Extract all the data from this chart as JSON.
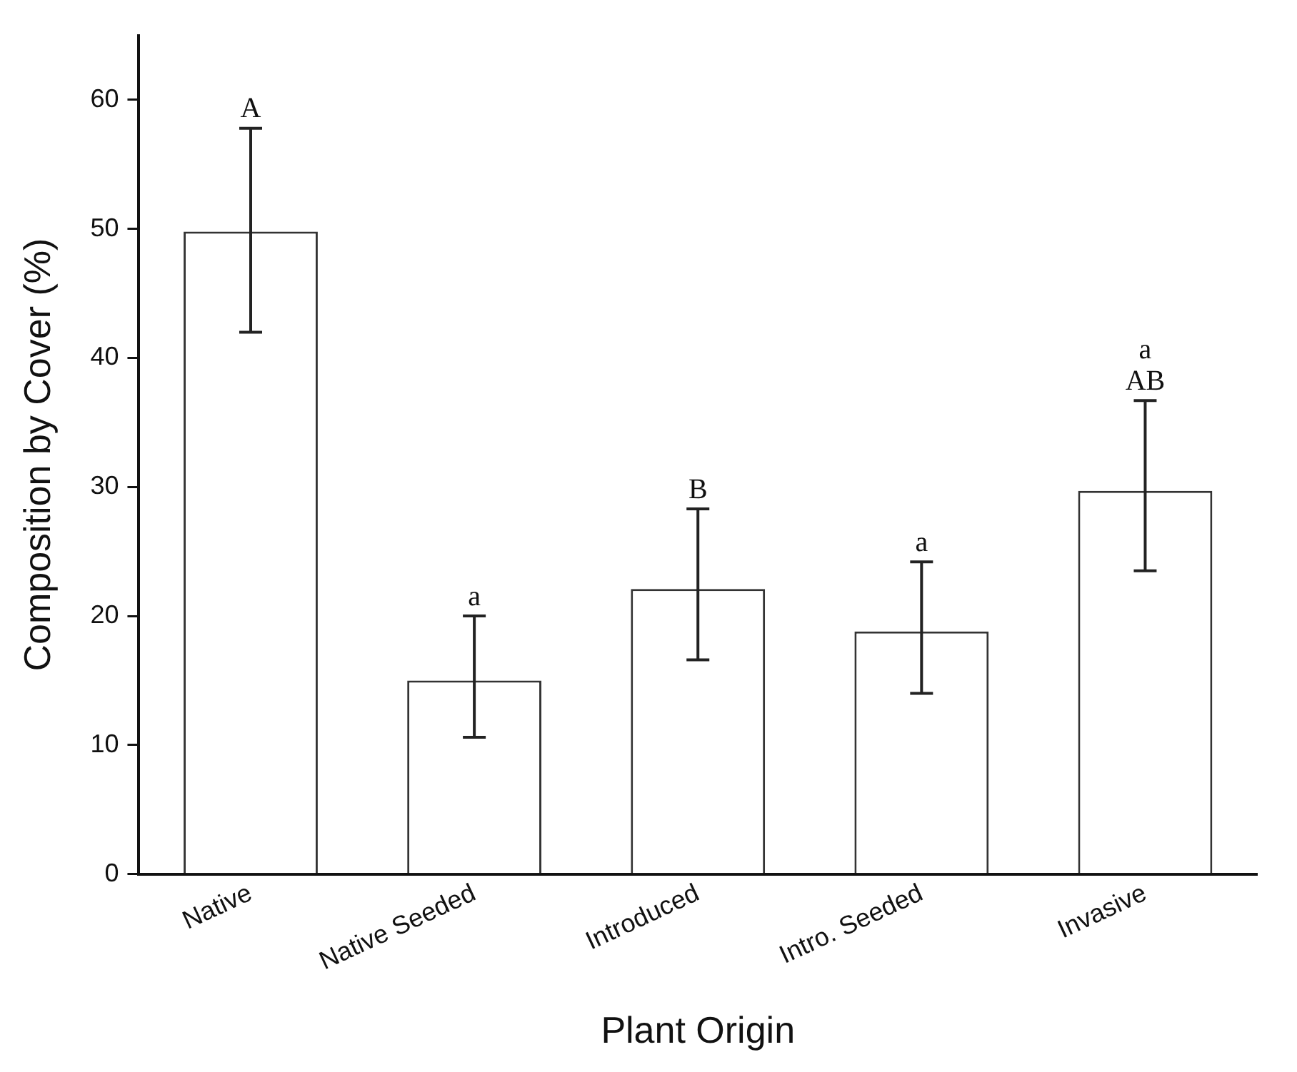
{
  "chart_data": {
    "type": "bar",
    "xlabel": "Plant Origin",
    "ylabel": "Composition by Cover (%)",
    "categories": [
      "Native",
      "Native Seeded",
      "Introduced",
      "Intro. Seeded",
      "Invasive"
    ],
    "series": [
      {
        "color": "#ffffff",
        "values": [
          49.8,
          15.0,
          22.1,
          18.8,
          29.7
        ],
        "errors": [
          [
            42.0,
            57.8
          ],
          [
            10.6,
            20.0
          ],
          [
            16.6,
            28.3
          ],
          [
            14.0,
            24.2
          ],
          [
            23.5,
            36.7
          ]
        ]
      }
    ],
    "ylim": [
      0,
      65
    ],
    "yticks": [
      0,
      10,
      20,
      30,
      40,
      50,
      60
    ],
    "grid": false,
    "legend": false,
    "annotations": [
      {
        "text": "A",
        "x": "Native",
        "y": 57.8
      },
      {
        "text": "a",
        "x": "Native Seeded",
        "y": 20.0
      },
      {
        "text": "B",
        "x": "Introduced",
        "y": 28.3
      },
      {
        "text": "a",
        "x": "Intro. Seeded",
        "y": 24.2
      },
      {
        "text": "AB",
        "x": "Invasive",
        "y": 36.7
      },
      {
        "text": "a",
        "x": "Invasive",
        "y": 36.7
      }
    ]
  }
}
